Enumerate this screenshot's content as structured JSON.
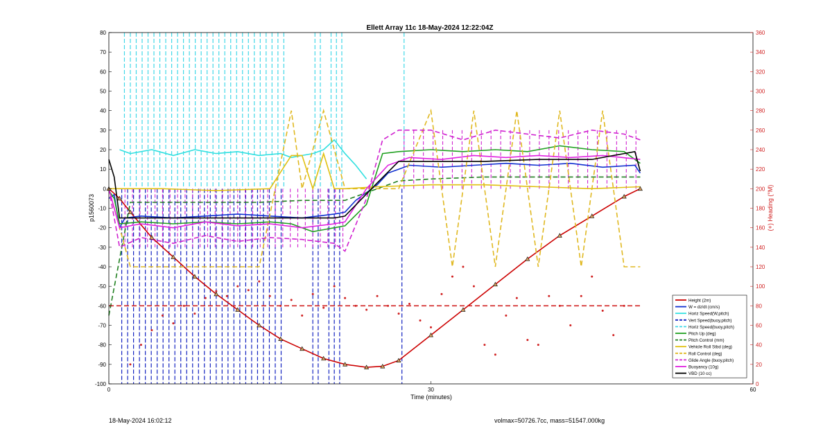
{
  "chart_data": {
    "type": "line",
    "title": "Ellett Array 11c 18-May-2024 12:22:04Z",
    "xlabel": "Time (minutes)",
    "ylabel_left": "p1560073",
    "ylabel_right": "(+) Heading (°M)",
    "xlim": [
      0,
      60
    ],
    "ylim_left": [
      -100,
      80
    ],
    "ylim_right": [
      0,
      360
    ],
    "x_ticks": [
      "0",
      "30",
      "60"
    ],
    "y_ticks_left": [
      "80",
      "70",
      "60",
      "50",
      "40",
      "30",
      "20",
      "10",
      "0",
      "-10",
      "-20",
      "-30",
      "-40",
      "-50",
      "-60",
      "-70",
      "-80",
      "-90",
      "-100"
    ],
    "y_ticks_right": [
      "360",
      "340",
      "320",
      "300",
      "280",
      "260",
      "240",
      "220",
      "200",
      "180",
      "160",
      "140",
      "120",
      "100",
      "80",
      "60",
      "40",
      "20",
      "0"
    ],
    "grid": false,
    "legend_position": "bottom-right",
    "series": [
      {
        "name": "Height (2m)",
        "color": "#cc0000",
        "style": "solid",
        "x": [
          0,
          1,
          2,
          4,
          6,
          8,
          10,
          12,
          14,
          16,
          18,
          20,
          22,
          24,
          25.5,
          27,
          30,
          33,
          36,
          39,
          42,
          45,
          48,
          49.5
        ],
        "values": [
          0,
          -5,
          -12,
          -25,
          -35,
          -45,
          -54,
          -62,
          -70,
          -77,
          -82,
          -87,
          -90,
          -91.5,
          -91,
          -88,
          -75,
          -62,
          -49,
          -36,
          -24,
          -14,
          -4,
          0
        ]
      },
      {
        "name": "W = dz/dt (cm/s)",
        "color": "#1030d0",
        "style": "solid",
        "x": [
          0,
          0.5,
          1,
          1.5,
          3,
          6,
          9,
          12,
          15,
          18,
          21,
          22,
          23,
          25,
          26,
          27,
          28,
          31,
          34,
          37,
          40,
          43,
          46,
          49,
          49.5
        ],
        "values": [
          -5,
          -3,
          -20,
          -15,
          -14,
          -15,
          -14,
          -13,
          -14,
          -15,
          -13,
          -12,
          -6,
          2,
          8,
          10,
          12,
          11,
          12,
          13,
          12,
          13,
          11,
          12,
          8
        ]
      },
      {
        "name": "Horiz Speed(W,pitch)",
        "color": "#30e0e0",
        "style": "solid",
        "x": [
          1,
          2,
          4,
          6,
          8,
          10,
          12,
          14,
          16,
          17,
          18,
          19,
          20,
          21,
          22,
          23,
          24
        ],
        "values": [
          20,
          18,
          20,
          17,
          20,
          18,
          19,
          17,
          18,
          16,
          17,
          18,
          20,
          25,
          18,
          12,
          5
        ]
      },
      {
        "name": "Vert Speed(buoy,pitch)",
        "color": "#1020c0",
        "style": "dashed",
        "x": [],
        "values": []
      },
      {
        "name": "Horiz Speed(buoy,pitch)",
        "color": "#40d8e8",
        "style": "dashed",
        "x": [],
        "values": []
      },
      {
        "name": "Pitch Up (deg)",
        "color": "#20a020",
        "style": "solid",
        "x": [
          0,
          0.5,
          1,
          3,
          6,
          9,
          12,
          15,
          17,
          18,
          19,
          20,
          21,
          22,
          24,
          25.5,
          27,
          30,
          33,
          36,
          39,
          42,
          45,
          48,
          49.5
        ],
        "values": [
          -1,
          -5,
          -18,
          -17,
          -18,
          -17,
          -18,
          -17,
          -18,
          -20,
          -22,
          -21,
          -20,
          -19,
          -8,
          18,
          19,
          20,
          19,
          20,
          19,
          22,
          20,
          19,
          13
        ]
      },
      {
        "name": "Pitch Control (mm)",
        "color": "#208020",
        "style": "dashed",
        "x": [
          0,
          2,
          6,
          10,
          14,
          18,
          20,
          22,
          24,
          27,
          30,
          35,
          40,
          45,
          49.5
        ],
        "values": [
          -65,
          -7,
          -7,
          -7,
          -7,
          -6,
          -6,
          -6,
          -2,
          4,
          5,
          6,
          6,
          6,
          6
        ]
      },
      {
        "name": "Vehicle Roll Stbd (deg)",
        "color": "#e0c010",
        "style": "solid",
        "x": [
          0,
          5,
          10,
          15,
          17,
          18,
          19,
          20,
          21,
          22,
          25,
          30,
          35,
          40,
          45,
          49.5
        ],
        "values": [
          0,
          0,
          -1,
          0,
          17,
          17,
          0,
          18,
          0,
          0,
          1,
          2,
          2,
          1,
          0,
          1
        ]
      },
      {
        "name": "Roll Control (deg)",
        "color": "#e0b820",
        "style": "dashed",
        "x": [
          0,
          2,
          6,
          10,
          14,
          17,
          18,
          20,
          22,
          24,
          27,
          30,
          32,
          34,
          36,
          38,
          40,
          42,
          44,
          46,
          48,
          49.5
        ],
        "values": [
          0,
          -40,
          -40,
          -40,
          -40,
          40,
          0,
          40,
          0,
          0,
          0,
          40,
          -40,
          40,
          -40,
          40,
          -40,
          40,
          -40,
          40,
          -40,
          -40
        ]
      },
      {
        "name": "Glide Angle (buoy,pitch)",
        "color": "#d020d0",
        "style": "dashed",
        "x": [
          0,
          1,
          3,
          6,
          9,
          12,
          15,
          18,
          21,
          22,
          24,
          25.5,
          27,
          30,
          33,
          36,
          39,
          42,
          45,
          48,
          49.5
        ],
        "values": [
          0,
          -30,
          -25,
          -28,
          -24,
          -27,
          -25,
          -26,
          -28,
          -32,
          -5,
          25,
          30,
          30,
          25,
          30,
          28,
          26,
          30,
          28,
          25
        ]
      },
      {
        "name": "Buoyancy (10g)",
        "color": "#e020e0",
        "style": "solid",
        "x": [
          0,
          1,
          3,
          6,
          9,
          12,
          15,
          18,
          21,
          22,
          24,
          26,
          28,
          31,
          34,
          37,
          40,
          43,
          46,
          49.5
        ],
        "values": [
          0,
          -20,
          -18,
          -20,
          -17,
          -19,
          -18,
          -20,
          -18,
          -17,
          0,
          12,
          16,
          15,
          17,
          16,
          17,
          16,
          17,
          15
        ]
      },
      {
        "name": "VBD (10 cc)",
        "color": "#000000",
        "style": "solid",
        "x": [
          0,
          0.5,
          1,
          3,
          6,
          9,
          12,
          15,
          18,
          21,
          22,
          25,
          27,
          30,
          35,
          40,
          45,
          48,
          49,
          49.5
        ],
        "values": [
          15,
          6,
          -15,
          -15,
          -15,
          -15,
          -15,
          -15,
          -15,
          -15,
          -14,
          3,
          14,
          14,
          14,
          15,
          15,
          18,
          19,
          9
        ]
      }
    ],
    "references": [
      {
        "name": "heading reference",
        "color": "#d02020",
        "style": "dashed",
        "y_right": 80
      }
    ],
    "heading_scatter": {
      "color": "#d02020",
      "x": [
        2,
        3,
        4,
        5,
        6,
        7,
        8,
        9,
        10,
        11,
        12,
        13,
        14,
        15,
        16,
        17,
        18,
        19,
        20,
        21,
        22,
        23,
        24,
        25,
        26,
        27,
        28,
        29,
        30,
        31,
        32,
        33,
        34,
        35,
        36,
        37,
        38,
        39,
        40,
        41,
        42,
        43,
        44,
        45,
        46,
        47,
        48
      ],
      "values": [
        20,
        40,
        55,
        70,
        62,
        80,
        72,
        88,
        95,
        90,
        100,
        96,
        105,
        90,
        80,
        86,
        70,
        92,
        78,
        100,
        88,
        80,
        76,
        90,
        80,
        72,
        82,
        65,
        58,
        92,
        110,
        120,
        100,
        40,
        30,
        70,
        88,
        45,
        40,
        90,
        80,
        60,
        90,
        110,
        75,
        50,
        80
      ]
    }
  },
  "footer": {
    "left": "18-May-2024 16:02:12",
    "right": "volmax=50726.7cc, mass=51547.000kg"
  }
}
